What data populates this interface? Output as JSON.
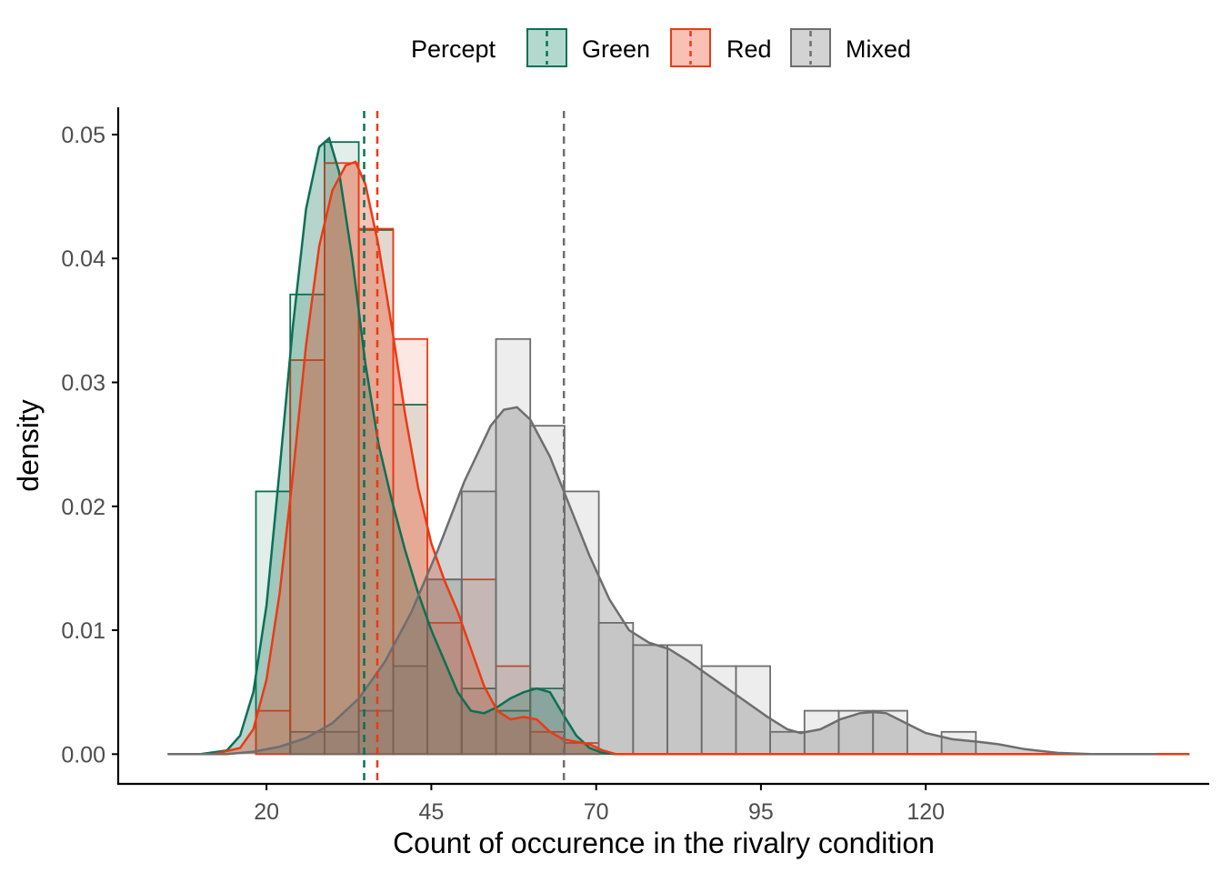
{
  "chart_data": {
    "type": "histogram",
    "xlabel": "Count of occurence in the rivalry condition",
    "ylabel": "density",
    "x_ticks": [
      20,
      45,
      70,
      95,
      120
    ],
    "y_ticks": [
      0.0,
      0.01,
      0.02,
      0.03,
      0.04,
      0.05
    ],
    "y_tick_labels": [
      "0.00",
      "0.01",
      "0.02",
      "0.03",
      "0.04",
      "0.05"
    ],
    "xlim": [
      -2.5,
      163
    ],
    "ylim": [
      -0.0024,
      0.0522
    ],
    "bin_width": 5.2,
    "grid": false,
    "legend": {
      "title": "Percept",
      "position": "top"
    },
    "series": [
      {
        "name": "Green",
        "color": "#0b7055",
        "fill": "#b3d9cf",
        "mean": 34.8,
        "histogram": [
          {
            "x0": 18.4,
            "density": 0.0212
          },
          {
            "x0": 23.6,
            "density": 0.0371
          },
          {
            "x0": 28.8,
            "density": 0.0494
          },
          {
            "x0": 34.0,
            "density": 0.0423
          },
          {
            "x0": 39.2,
            "density": 0.0282
          },
          {
            "x0": 44.4,
            "density": 0.0141
          },
          {
            "x0": 49.6,
            "density": 0.0053
          },
          {
            "x0": 54.8,
            "density": 0.0035
          },
          {
            "x0": 60.0,
            "density": 0.0053
          }
        ],
        "density": [
          [
            5,
            0
          ],
          [
            10,
            0
          ],
          [
            14,
            0.0003
          ],
          [
            16,
            0.0015
          ],
          [
            18,
            0.005
          ],
          [
            20,
            0.012
          ],
          [
            22,
            0.023
          ],
          [
            24,
            0.0345
          ],
          [
            26,
            0.044
          ],
          [
            28,
            0.049
          ],
          [
            29.5,
            0.0497
          ],
          [
            31,
            0.047
          ],
          [
            33,
            0.04
          ],
          [
            35,
            0.0315
          ],
          [
            37,
            0.025
          ],
          [
            39,
            0.0205
          ],
          [
            41,
            0.0165
          ],
          [
            43,
            0.013
          ],
          [
            45,
            0.01
          ],
          [
            47,
            0.0075
          ],
          [
            49,
            0.005
          ],
          [
            51,
            0.0035
          ],
          [
            53,
            0.0033
          ],
          [
            55,
            0.0038
          ],
          [
            57,
            0.0045
          ],
          [
            59,
            0.005
          ],
          [
            61,
            0.0053
          ],
          [
            63,
            0.005
          ],
          [
            65,
            0.0032
          ],
          [
            67,
            0.0015
          ],
          [
            69,
            0.0005
          ],
          [
            71,
            0.0001
          ],
          [
            73,
            0
          ],
          [
            160,
            0
          ]
        ]
      },
      {
        "name": "Red",
        "color": "#ec3a13",
        "fill": "#f9c1b6",
        "mean": 36.8,
        "histogram": [
          {
            "x0": 18.4,
            "density": 0.0035
          },
          {
            "x0": 23.6,
            "density": 0.0318
          },
          {
            "x0": 28.8,
            "density": 0.0477
          },
          {
            "x0": 34.0,
            "density": 0.0424
          },
          {
            "x0": 39.2,
            "density": 0.0335
          },
          {
            "x0": 44.4,
            "density": 0.0106
          },
          {
            "x0": 49.6,
            "density": 0.0141
          },
          {
            "x0": 54.8,
            "density": 0.0071
          },
          {
            "x0": 60.0,
            "density": 0.0018
          },
          {
            "x0": 65.2,
            "density": 0.0009
          }
        ],
        "density": [
          [
            5,
            0
          ],
          [
            12,
            0
          ],
          [
            16,
            0.0005
          ],
          [
            18,
            0.002
          ],
          [
            20,
            0.006
          ],
          [
            22,
            0.013
          ],
          [
            24,
            0.0225
          ],
          [
            26,
            0.033
          ],
          [
            28,
            0.041
          ],
          [
            30,
            0.0455
          ],
          [
            32,
            0.0475
          ],
          [
            33.5,
            0.0478
          ],
          [
            35,
            0.046
          ],
          [
            37,
            0.041
          ],
          [
            39,
            0.0345
          ],
          [
            41,
            0.0275
          ],
          [
            43,
            0.0215
          ],
          [
            45,
            0.017
          ],
          [
            47,
            0.014
          ],
          [
            49,
            0.0115
          ],
          [
            51,
            0.0085
          ],
          [
            53,
            0.0055
          ],
          [
            55,
            0.0035
          ],
          [
            57,
            0.0028
          ],
          [
            59,
            0.003
          ],
          [
            61,
            0.0028
          ],
          [
            63,
            0.0018
          ],
          [
            65,
            0.0012
          ],
          [
            67,
            0.001
          ],
          [
            69,
            0.0008
          ],
          [
            71,
            0.0003
          ],
          [
            73,
            0
          ],
          [
            160,
            0
          ]
        ]
      },
      {
        "name": "Mixed",
        "color": "#6e6e6e",
        "fill": "#d3d3d3",
        "mean": 65.1,
        "histogram": [
          {
            "x0": 23.6,
            "density": 0.0018
          },
          {
            "x0": 28.8,
            "density": 0.0018
          },
          {
            "x0": 34.0,
            "density": 0.0035
          },
          {
            "x0": 39.2,
            "density": 0.0071
          },
          {
            "x0": 44.4,
            "density": 0.0141
          },
          {
            "x0": 49.6,
            "density": 0.0212
          },
          {
            "x0": 54.8,
            "density": 0.0335
          },
          {
            "x0": 60.0,
            "density": 0.0265
          },
          {
            "x0": 65.2,
            "density": 0.0212
          },
          {
            "x0": 70.4,
            "density": 0.0106
          },
          {
            "x0": 75.6,
            "density": 0.0088
          },
          {
            "x0": 80.8,
            "density": 0.0088
          },
          {
            "x0": 86.0,
            "density": 0.0071
          },
          {
            "x0": 91.2,
            "density": 0.0071
          },
          {
            "x0": 96.4,
            "density": 0.0018
          },
          {
            "x0": 101.6,
            "density": 0.0035
          },
          {
            "x0": 106.8,
            "density": 0.0035
          },
          {
            "x0": 112.0,
            "density": 0.0035
          },
          {
            "x0": 117.2,
            "density": 0.0
          },
          {
            "x0": 122.4,
            "density": 0.0018
          }
        ],
        "density": [
          [
            5,
            0
          ],
          [
            14,
            0
          ],
          [
            18,
            0.0002
          ],
          [
            22,
            0.0006
          ],
          [
            26,
            0.0013
          ],
          [
            30,
            0.0025
          ],
          [
            34,
            0.0045
          ],
          [
            38,
            0.0075
          ],
          [
            42,
            0.0115
          ],
          [
            46,
            0.0165
          ],
          [
            50,
            0.022
          ],
          [
            54,
            0.0265
          ],
          [
            56,
            0.0278
          ],
          [
            58,
            0.028
          ],
          [
            60,
            0.027
          ],
          [
            63,
            0.024
          ],
          [
            66,
            0.02
          ],
          [
            69,
            0.016
          ],
          [
            72,
            0.0125
          ],
          [
            75,
            0.01
          ],
          [
            78,
            0.009
          ],
          [
            81,
            0.0085
          ],
          [
            84,
            0.0075
          ],
          [
            88,
            0.006
          ],
          [
            92,
            0.0045
          ],
          [
            96,
            0.003
          ],
          [
            99,
            0.002
          ],
          [
            101,
            0.0017
          ],
          [
            104,
            0.002
          ],
          [
            107,
            0.0028
          ],
          [
            110,
            0.0033
          ],
          [
            112,
            0.0034
          ],
          [
            114,
            0.0033
          ],
          [
            117,
            0.0025
          ],
          [
            120,
            0.0017
          ],
          [
            124,
            0.0012
          ],
          [
            128,
            0.001
          ],
          [
            131,
            0.0008
          ],
          [
            135,
            0.0004
          ],
          [
            140,
            0.0001
          ],
          [
            145,
            0
          ],
          [
            155,
            0
          ]
        ]
      }
    ]
  }
}
